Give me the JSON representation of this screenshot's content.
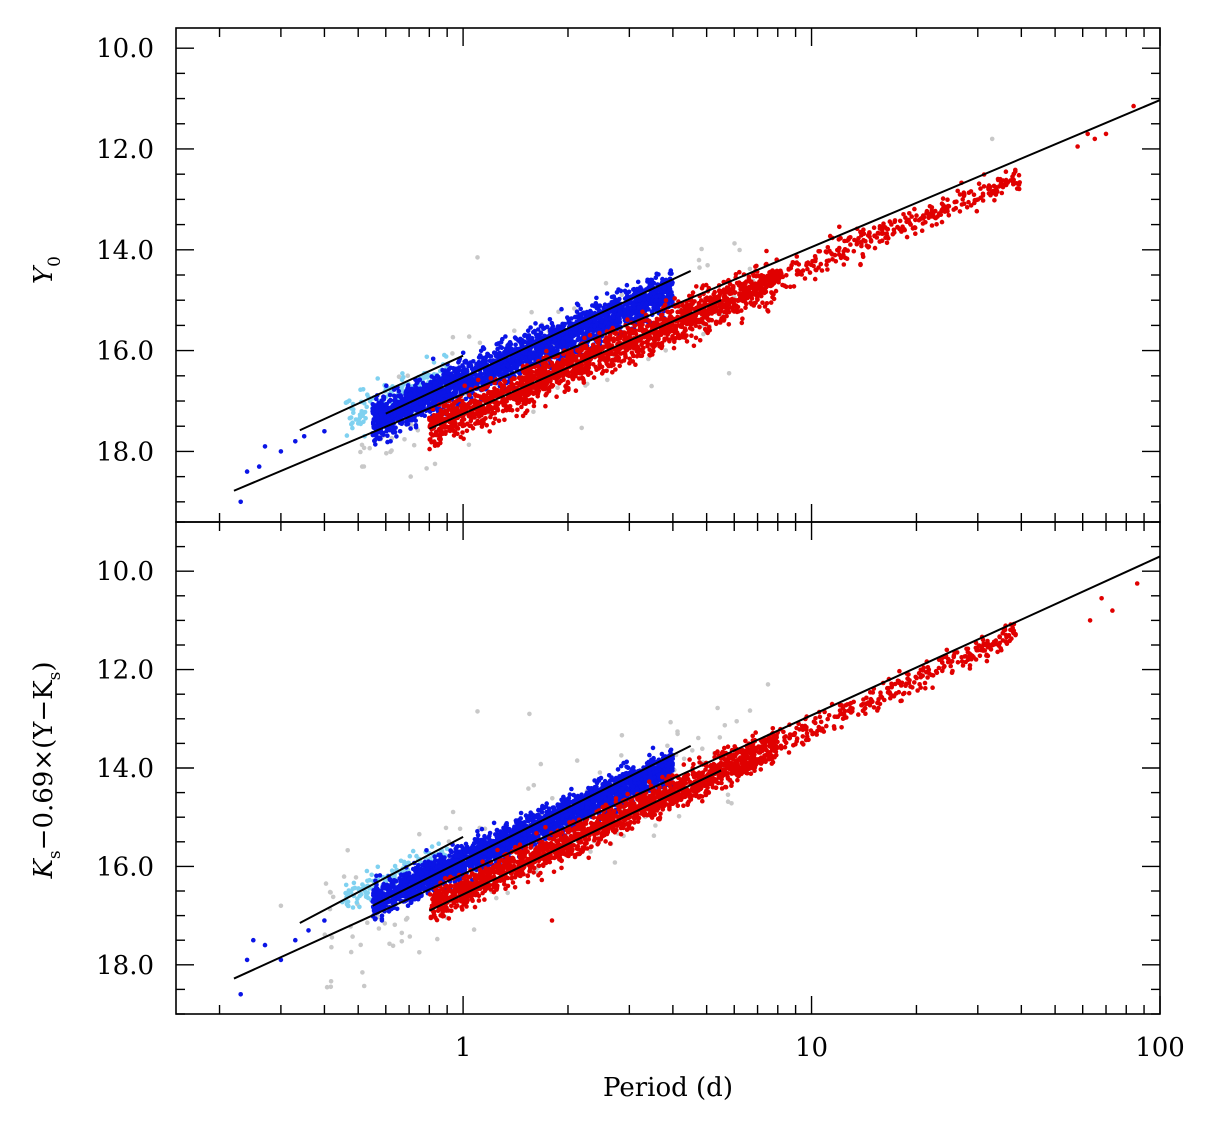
{
  "chart_data": {
    "type": "scatter",
    "xlabel": "Period (d)",
    "x_scale": "log",
    "xlim": [
      0.15,
      100
    ],
    "x_ticks": [
      "1",
      "10",
      "100"
    ],
    "colors": {
      "fundamental": "#e00000",
      "first_overtone": "#0a14e6",
      "second_overtone": "#7fd1f0",
      "outliers": "#c8c8c8",
      "fit": "#000000"
    },
    "panels": [
      {
        "ylabel": "Y0",
        "ylabel_main": "Y",
        "ylabel_sub": "0",
        "ylim": [
          19.4,
          9.6
        ],
        "y_ticks": [
          "10.0",
          "12.0",
          "14.0",
          "16.0",
          "18.0"
        ],
        "fit_lines": [
          {
            "group": "all",
            "x": [
              0.22,
              100
            ],
            "y": [
              18.78,
              11.03
            ]
          },
          {
            "group": "first_overtone",
            "x": [
              0.6,
              4.5
            ],
            "y": [
              17.25,
              14.42
            ]
          },
          {
            "group": "second_overtone",
            "x": [
              0.34,
              1.0
            ],
            "y": [
              17.58,
              16.1
            ]
          },
          {
            "group": "fundamental",
            "x": [
              0.8,
              5.5
            ],
            "y": [
              17.55,
              15.0
            ]
          }
        ],
        "clouds": [
          {
            "group": "first_overtone",
            "n": 2600,
            "x_range": [
              0.55,
              4.0
            ],
            "slope": -3.0,
            "y_at_1": 16.62,
            "scatter": 0.2
          },
          {
            "group": "second_overtone",
            "n": 150,
            "x_range": [
              0.45,
              0.9
            ],
            "slope": -3.0,
            "y_at_1": 16.32,
            "scatter": 0.18
          },
          {
            "group": "fundamental",
            "n": 1800,
            "x_range": [
              0.8,
              8.0
            ],
            "slope": -2.95,
            "y_at_1": 17.25,
            "scatter": 0.2
          },
          {
            "group": "fundamental",
            "n": 300,
            "x_range": [
              8.0,
              40.0
            ],
            "slope": -2.95,
            "y_at_1": 17.25,
            "scatter": 0.15
          },
          {
            "group": "outliers",
            "n": 140,
            "x_range": [
              0.5,
              7.0
            ],
            "slope": -3.0,
            "y_at_1": 16.9,
            "scatter": 0.55
          }
        ],
        "points": [
          {
            "group": "first_overtone",
            "x": 0.23,
            "y": 19.0
          },
          {
            "group": "first_overtone",
            "x": 0.24,
            "y": 18.4
          },
          {
            "group": "first_overtone",
            "x": 0.26,
            "y": 18.3
          },
          {
            "group": "first_overtone",
            "x": 0.27,
            "y": 17.9
          },
          {
            "group": "first_overtone",
            "x": 0.3,
            "y": 18.0
          },
          {
            "group": "first_overtone",
            "x": 0.33,
            "y": 17.8
          },
          {
            "group": "first_overtone",
            "x": 0.35,
            "y": 17.7
          },
          {
            "group": "first_overtone",
            "x": 0.4,
            "y": 17.6
          },
          {
            "group": "fundamental",
            "x": 58,
            "y": 11.95
          },
          {
            "group": "fundamental",
            "x": 62,
            "y": 11.7
          },
          {
            "group": "fundamental",
            "x": 65,
            "y": 11.8
          },
          {
            "group": "fundamental",
            "x": 70,
            "y": 11.7
          },
          {
            "group": "fundamental",
            "x": 84,
            "y": 11.15
          },
          {
            "group": "outliers",
            "x": 1.1,
            "y": 14.15
          },
          {
            "group": "outliers",
            "x": 5.8,
            "y": 16.45
          },
          {
            "group": "outliers",
            "x": 33,
            "y": 11.8
          }
        ]
      },
      {
        "ylabel": "Ks-0.69x(Y-Ks)",
        "ylabel_main": "K",
        "ylabel_sub": "s",
        "ylabel_rest": "−0.69×(Y−K",
        "ylabel_sub2": "s",
        "ylabel_end": ")",
        "ylim": [
          19.0,
          9.0
        ],
        "y_ticks": [
          "10.0",
          "12.0",
          "14.0",
          "16.0",
          "18.0"
        ],
        "fit_lines": [
          {
            "group": "all",
            "x": [
              0.22,
              100
            ],
            "y": [
              18.28,
              9.7
            ]
          },
          {
            "group": "first_overtone",
            "x": [
              0.55,
              4.5
            ],
            "y": [
              16.8,
              13.55
            ]
          },
          {
            "group": "second_overtone",
            "x": [
              0.34,
              1.0
            ],
            "y": [
              17.15,
              15.4
            ]
          },
          {
            "group": "fundamental",
            "x": [
              0.8,
              5.5
            ],
            "y": [
              16.9,
              14.05
            ]
          }
        ],
        "clouds": [
          {
            "group": "first_overtone",
            "n": 2600,
            "x_range": [
              0.55,
              4.0
            ],
            "slope": -3.25,
            "y_at_1": 15.9,
            "scatter": 0.17
          },
          {
            "group": "second_overtone",
            "n": 150,
            "x_range": [
              0.45,
              0.9
            ],
            "slope": -3.25,
            "y_at_1": 15.55,
            "scatter": 0.16
          },
          {
            "group": "fundamental",
            "n": 1800,
            "x_range": [
              0.8,
              8.0
            ],
            "slope": -3.3,
            "y_at_1": 16.5,
            "scatter": 0.17
          },
          {
            "group": "fundamental",
            "n": 300,
            "x_range": [
              8.0,
              40.0
            ],
            "slope": -3.3,
            "y_at_1": 16.5,
            "scatter": 0.13
          },
          {
            "group": "outliers",
            "n": 160,
            "x_range": [
              0.4,
              7.0
            ],
            "slope": -3.25,
            "y_at_1": 16.1,
            "scatter": 0.6
          }
        ],
        "points": [
          {
            "group": "first_overtone",
            "x": 0.23,
            "y": 18.6
          },
          {
            "group": "first_overtone",
            "x": 0.24,
            "y": 17.9
          },
          {
            "group": "first_overtone",
            "x": 0.25,
            "y": 17.5
          },
          {
            "group": "first_overtone",
            "x": 0.27,
            "y": 17.6
          },
          {
            "group": "first_overtone",
            "x": 0.3,
            "y": 17.9
          },
          {
            "group": "first_overtone",
            "x": 0.33,
            "y": 17.5
          },
          {
            "group": "first_overtone",
            "x": 0.36,
            "y": 17.3
          },
          {
            "group": "first_overtone",
            "x": 0.4,
            "y": 17.1
          },
          {
            "group": "fundamental",
            "x": 1.8,
            "y": 17.1
          },
          {
            "group": "fundamental",
            "x": 63,
            "y": 11.0
          },
          {
            "group": "fundamental",
            "x": 68,
            "y": 10.55
          },
          {
            "group": "fundamental",
            "x": 73,
            "y": 10.8
          },
          {
            "group": "fundamental",
            "x": 86,
            "y": 10.25
          },
          {
            "group": "outliers",
            "x": 1.1,
            "y": 12.85
          },
          {
            "group": "outliers",
            "x": 1.55,
            "y": 12.9
          },
          {
            "group": "outliers",
            "x": 0.3,
            "y": 16.8
          },
          {
            "group": "outliers",
            "x": 7.5,
            "y": 12.3
          }
        ]
      }
    ]
  }
}
